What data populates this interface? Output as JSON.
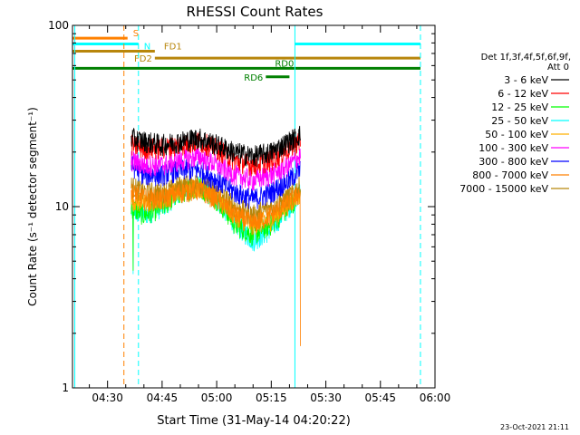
{
  "chart_data": {
    "type": "line",
    "title": "RHESSI Count Rates",
    "xlabel": "Start Time (31-May-14 04:20:22)",
    "ylabel": "Count Rate (s⁻¹ detector segment⁻¹)",
    "yscale": "log",
    "ylim": [
      1,
      100
    ],
    "xlim_minutes": [
      20.37,
      120
    ],
    "x_ticks": [
      "04:30",
      "04:45",
      "05:00",
      "05:15",
      "05:30",
      "05:45",
      "06:00"
    ],
    "y_ticks": [
      "1",
      "10",
      "100"
    ],
    "footer_date": "23-Oct-2021 21:11",
    "legend": {
      "title_line1": "Det 1f,3f,4f,5f,6f,9f,",
      "title_line2": "Att 0",
      "placement": "right"
    },
    "data_window_minutes": [
      36.5,
      83.0
    ],
    "x_profile_minutes": [
      36.5,
      40,
      45,
      50,
      55,
      60,
      65,
      70,
      75,
      80,
      83
    ],
    "series": [
      {
        "name": "3 - 6 keV",
        "color": "#000000",
        "values": [
          24,
          23,
          22,
          23,
          24,
          22,
          20,
          19,
          20,
          23,
          25
        ]
      },
      {
        "name": "6 - 12 keV",
        "color": "#ff0000",
        "values": [
          22,
          21,
          21,
          22,
          23,
          21,
          18,
          17,
          18,
          21,
          23
        ]
      },
      {
        "name": "12 - 25 keV",
        "color": "#00ff00",
        "values": [
          10,
          9,
          10,
          12,
          13,
          11,
          8,
          7,
          8,
          10,
          12
        ]
      },
      {
        "name": "25 - 50 keV",
        "color": "#00ffff",
        "values": [
          9.5,
          9,
          10,
          12,
          13,
          11,
          8,
          6.5,
          7.5,
          10,
          12
        ]
      },
      {
        "name": "50 - 100 keV",
        "color": "#ffb000",
        "values": [
          11,
          10.5,
          11,
          12.5,
          13,
          11.5,
          9,
          8,
          8.5,
          10.5,
          12
        ]
      },
      {
        "name": "100 - 300 keV",
        "color": "#ff00ff",
        "values": [
          18,
          17,
          17,
          18,
          19,
          17,
          15,
          14,
          15,
          17,
          19
        ]
      },
      {
        "name": "300 - 800 keV",
        "color": "#0000ff",
        "values": [
          17,
          15,
          15,
          16,
          16,
          14,
          12,
          11,
          12,
          14,
          16
        ]
      },
      {
        "name": "800 - 7000 keV",
        "color": "#ff8000",
        "values": [
          12,
          11,
          11,
          12,
          12.5,
          11,
          9,
          8,
          9,
          10.5,
          12
        ]
      },
      {
        "name": "7000 - 15000 keV",
        "color": "#b8860b",
        "values": [
          13,
          12,
          12,
          13,
          13.5,
          12,
          10,
          9,
          10,
          11.5,
          13
        ]
      }
    ],
    "flag_bars": [
      {
        "label": "S",
        "color": "#ff8000",
        "value": 85,
        "x_start": 20.37,
        "x_end": 35.5
      },
      {
        "label": "N",
        "color": "#00ffff",
        "value": 79,
        "x_start": 20.37,
        "x_end": 38.5
      },
      {
        "label": "",
        "color": "#00ffff",
        "value": 79,
        "x_start": 81.5,
        "x_end": 116
      },
      {
        "label": "FD1",
        "color": "#b8860b",
        "value": 72,
        "x_start": 20.37,
        "x_end": 43
      },
      {
        "label": "FD2",
        "color": "#b8860b",
        "value": 66,
        "x_start": 43,
        "x_end": 116
      },
      {
        "label": "RD0",
        "color": "#008000",
        "value": 58,
        "x_start": 20.37,
        "x_end": 116
      },
      {
        "label": "RD6",
        "color": "#008000",
        "value": 52,
        "x_start": 73.5,
        "x_end": 80
      }
    ],
    "vlines": [
      {
        "x": 21,
        "color": "#00ffff",
        "dashed": false
      },
      {
        "x": 81.5,
        "color": "#00ffff",
        "dashed": false
      },
      {
        "x": 34.5,
        "color": "#ff8000",
        "dashed": true
      },
      {
        "x": 38.5,
        "color": "#00ffff",
        "dashed": true
      },
      {
        "x": 116,
        "color": "#00ffff",
        "dashed": true
      }
    ]
  }
}
